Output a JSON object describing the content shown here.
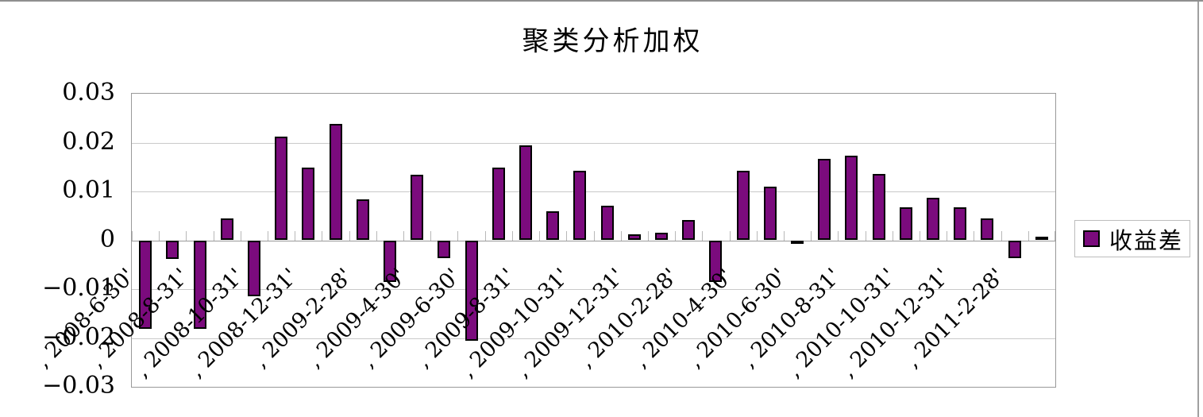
{
  "chart_data": {
    "type": "bar",
    "title": "聚类分析加权",
    "xlabel": "",
    "ylabel": "",
    "ylim": [
      -0.03,
      0.03
    ],
    "ytick_step": 0.01,
    "ytick_labels": [
      "0.03",
      "0.02",
      "0.01",
      "0",
      "−0.01",
      "−0.02",
      "−0.03"
    ],
    "grid": true,
    "legend": {
      "position": "right",
      "entries": [
        "收益差"
      ]
    },
    "bar_color": "#7B0B7D",
    "bar_border_color": "#000000",
    "x_labels": [
      ", 2008-6-30'",
      ", 2008-8-31'",
      ", 2008-10-31'",
      ", 2008-12-31'",
      ", 2009-2-28'",
      ", 2009-4-30'",
      ", 2009-6-30'",
      ", 2009-8-31'",
      ", 2009-10-31'",
      ", 2009-12-31'",
      ", 2010-2-28'",
      ", 2010-4-30'",
      ", 2010-6-30'",
      ", 2010-8-31'",
      ", 2010-10-31'",
      ", 2010-12-31'",
      ", 2011-2-28'"
    ],
    "x_label_placement": "every other bar, starting with the first bar",
    "series": [
      {
        "name": "收益差",
        "values": [
          -0.0182,
          -0.0038,
          -0.0182,
          0.0044,
          -0.0115,
          0.0212,
          0.0149,
          0.0238,
          0.0083,
          -0.0085,
          0.0134,
          -0.0036,
          -0.0205,
          0.0148,
          0.0194,
          0.006,
          0.0143,
          0.0071,
          0.0012,
          0.0015,
          0.0041,
          -0.0085,
          0.0142,
          0.011,
          -0.0005,
          0.0167,
          0.0173,
          0.0135,
          0.0067,
          0.0087,
          0.0067,
          0.0045,
          -0.0036,
          0.0008
        ]
      }
    ]
  },
  "colors": {
    "grid": "#c9c9c9",
    "axis": "#999999",
    "category_tick": "#b8b8b8",
    "frame_border": "#8f8f8f"
  }
}
